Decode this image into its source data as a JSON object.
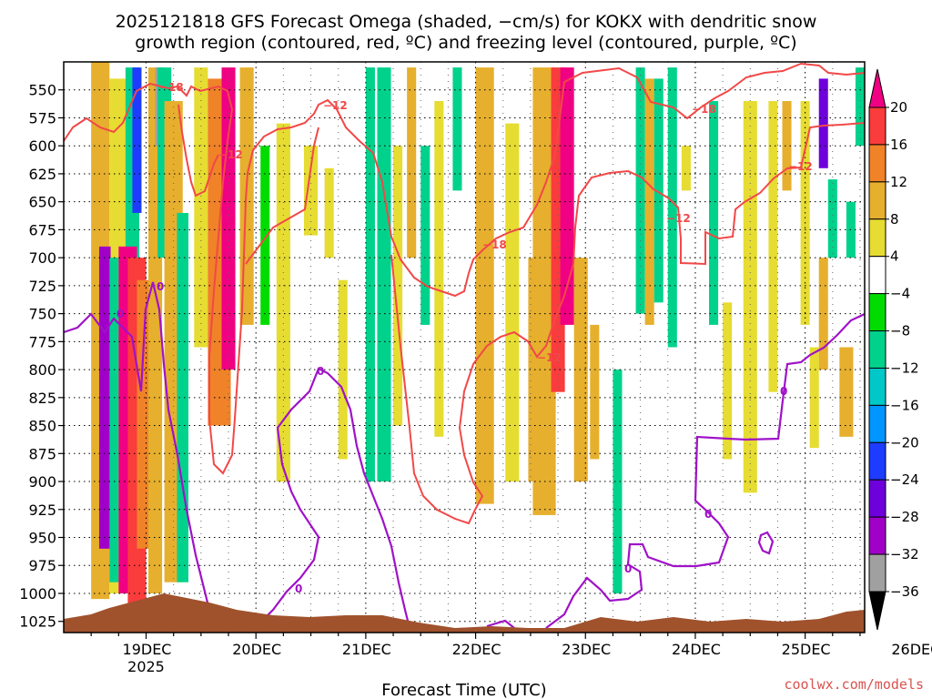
{
  "chart_data": {
    "type": "heatmap",
    "title": [
      "2025121818 GFS Forecast Omega (shaded, −cm/s) for KOKX with dendritic snow",
      "growth region (contoured, red, ºC) and freezing level (contoured, purple, ºC)"
    ],
    "xlabel": "Forecast Time (UTC)",
    "credit": "coolwx.com/models",
    "x_ticks": [
      "19DEC",
      "20DEC",
      "21DEC",
      "22DEC",
      "23DEC",
      "24DEC",
      "25DEC",
      "26DEC"
    ],
    "x_year": "2025",
    "xlim_hours": [
      -18,
      157
    ],
    "y_ticks": [
      550,
      575,
      600,
      625,
      650,
      675,
      700,
      725,
      750,
      775,
      800,
      825,
      850,
      875,
      900,
      925,
      950,
      975,
      1000,
      1025
    ],
    "ylim_hpa": [
      1035,
      525
    ],
    "colorbar": {
      "bounds": [
        -36,
        -32,
        -28,
        -24,
        -20,
        -16,
        -12,
        -8,
        -4,
        4,
        8,
        12,
        16,
        20
      ],
      "tick_labels": [
        "20",
        "16",
        "12",
        "8",
        "4",
        "−4",
        "−8",
        "−12",
        "−16",
        "−20",
        "−24",
        "−28",
        "−32",
        "−36"
      ],
      "colors": [
        "#000000",
        "#a0a0a0",
        "#a000c8",
        "#6e00dc",
        "#1e3cff",
        "#0096ff",
        "#00c8c8",
        "#00d28c",
        "#00dc00",
        "#ffffff",
        "#e6dc32",
        "#e6af2d",
        "#f08228",
        "#fa3c3c",
        "#f00082"
      ]
    },
    "contours": [
      {
        "name": "dendritic upper bound",
        "label": "-18",
        "color": "#f24848"
      },
      {
        "name": "dendritic lower bound",
        "label": "-12",
        "color": "#f24848"
      },
      {
        "name": "freezing level",
        "label": "0",
        "color": "#a012c8"
      }
    ],
    "omega_cells": [
      {
        "t": -10,
        "p0": 525,
        "p1": 1005,
        "w": 4,
        "v": 8
      },
      {
        "t": -6,
        "p0": 540,
        "p1": 1000,
        "w": 4,
        "v": 6
      },
      {
        "t": -9,
        "p0": 690,
        "p1": 960,
        "w": 2.5,
        "v": -30
      },
      {
        "t": -7,
        "p0": 700,
        "p1": 990,
        "w": 2,
        "v": -10
      },
      {
        "t": -3,
        "p0": 530,
        "p1": 700,
        "w": 3,
        "v": -10
      },
      {
        "t": -2,
        "p0": 530,
        "p1": 660,
        "w": 2,
        "v": -22
      },
      {
        "t": -4,
        "p0": 690,
        "p1": 1000,
        "w": 4,
        "v": 22
      },
      {
        "t": -2,
        "p0": 700,
        "p1": 1010,
        "w": 4,
        "v": 18
      },
      {
        "t": 0,
        "p0": 720,
        "p1": 960,
        "w": 4,
        "v": 12
      },
      {
        "t": 2,
        "p0": 530,
        "p1": 1000,
        "w": 3,
        "v": 10
      },
      {
        "t": 3,
        "p0": 530,
        "p1": 600,
        "w": 2,
        "v": -34
      },
      {
        "t": 4,
        "p0": 530,
        "p1": 700,
        "w": 3,
        "v": -12
      },
      {
        "t": 6,
        "p0": 560,
        "p1": 990,
        "w": 4,
        "v": 8
      },
      {
        "t": 8,
        "p0": 660,
        "p1": 990,
        "w": 2.5,
        "v": -10
      },
      {
        "t": 12,
        "p0": 530,
        "p1": 780,
        "w": 3,
        "v": 6
      },
      {
        "t": 16,
        "p0": 540,
        "p1": 850,
        "w": 5,
        "v": 12
      },
      {
        "t": 18,
        "p0": 530,
        "p1": 800,
        "w": 3,
        "v": 22
      },
      {
        "t": 22,
        "p0": 530,
        "p1": 760,
        "w": 3,
        "v": 8
      },
      {
        "t": 26,
        "p0": 600,
        "p1": 760,
        "w": 2,
        "v": -8
      },
      {
        "t": 30,
        "p0": 580,
        "p1": 900,
        "w": 3,
        "v": 6
      },
      {
        "t": 36,
        "p0": 600,
        "p1": 680,
        "w": 3,
        "v": 6
      },
      {
        "t": 40,
        "p0": 620,
        "p1": 700,
        "w": 2,
        "v": 6
      },
      {
        "t": 43,
        "p0": 720,
        "p1": 880,
        "w": 2,
        "v": 6
      },
      {
        "t": 49,
        "p0": 530,
        "p1": 900,
        "w": 2,
        "v": -9
      },
      {
        "t": 52,
        "p0": 530,
        "p1": 900,
        "w": 3,
        "v": -10
      },
      {
        "t": 55,
        "p0": 600,
        "p1": 850,
        "w": 2,
        "v": 6
      },
      {
        "t": 58,
        "p0": 530,
        "p1": 700,
        "w": 2,
        "v": 8
      },
      {
        "t": 61,
        "p0": 600,
        "p1": 760,
        "w": 2,
        "v": -9
      },
      {
        "t": 64,
        "p0": 560,
        "p1": 860,
        "w": 2,
        "v": 6
      },
      {
        "t": 68,
        "p0": 530,
        "p1": 640,
        "w": 2,
        "v": -9
      },
      {
        "t": 74,
        "p0": 530,
        "p1": 920,
        "w": 4,
        "v": 8
      },
      {
        "t": 80,
        "p0": 580,
        "p1": 900,
        "w": 3,
        "v": 6
      },
      {
        "t": 85,
        "p0": 700,
        "p1": 900,
        "w": 3,
        "v": 8
      },
      {
        "t": 87,
        "p0": 530,
        "p1": 930,
        "w": 5,
        "v": 10
      },
      {
        "t": 90,
        "p0": 530,
        "p1": 820,
        "w": 3,
        "v": 16
      },
      {
        "t": 92,
        "p0": 530,
        "p1": 760,
        "w": 3,
        "v": 24
      },
      {
        "t": 95,
        "p0": 700,
        "p1": 900,
        "w": 3,
        "v": 10
      },
      {
        "t": 98,
        "p0": 760,
        "p1": 880,
        "w": 2,
        "v": 8
      },
      {
        "t": 103,
        "p0": 800,
        "p1": 1000,
        "w": 2,
        "v": -10
      },
      {
        "t": 108,
        "p0": 530,
        "p1": 750,
        "w": 2,
        "v": -10
      },
      {
        "t": 110,
        "p0": 540,
        "p1": 760,
        "w": 2,
        "v": 8
      },
      {
        "t": 112,
        "p0": 540,
        "p1": 740,
        "w": 2,
        "v": -9
      },
      {
        "t": 115,
        "p0": 530,
        "p1": 780,
        "w": 2,
        "v": -10
      },
      {
        "t": 118,
        "p0": 600,
        "p1": 640,
        "w": 2,
        "v": 6
      },
      {
        "t": 124,
        "p0": 560,
        "p1": 760,
        "w": 2,
        "v": -10
      },
      {
        "t": 127,
        "p0": 740,
        "p1": 880,
        "w": 2,
        "v": 6
      },
      {
        "t": 132,
        "p0": 560,
        "p1": 910,
        "w": 3,
        "v": 6
      },
      {
        "t": 137,
        "p0": 560,
        "p1": 820,
        "w": 2,
        "v": 6
      },
      {
        "t": 140,
        "p0": 560,
        "p1": 640,
        "w": 2,
        "v": 8
      },
      {
        "t": 144,
        "p0": 560,
        "p1": 760,
        "w": 2,
        "v": 6
      },
      {
        "t": 146,
        "p0": 780,
        "p1": 870,
        "w": 2,
        "v": 6
      },
      {
        "t": 148,
        "p0": 540,
        "p1": 620,
        "w": 2,
        "v": -26
      },
      {
        "t": 148,
        "p0": 700,
        "p1": 800,
        "w": 2,
        "v": 8
      },
      {
        "t": 150,
        "p0": 630,
        "p1": 700,
        "w": 2,
        "v": -10
      },
      {
        "t": 153,
        "p0": 780,
        "p1": 860,
        "w": 3,
        "v": 8
      },
      {
        "t": 154,
        "p0": 650,
        "p1": 700,
        "w": 2,
        "v": -10
      },
      {
        "t": 156,
        "p0": 530,
        "p1": 600,
        "w": 2,
        "v": -12
      }
    ]
  }
}
